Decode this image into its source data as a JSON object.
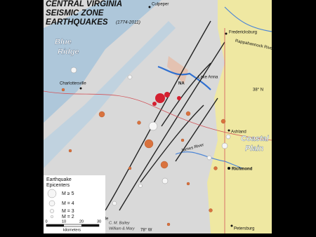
{
  "header": {
    "title_lines": [
      "CENTRAL VIRGINIA",
      "SEISMIC ZONE",
      "EARTHQUAKES"
    ],
    "dates": "(1774-2011)"
  },
  "places": {
    "culpeper": "Culpeper",
    "fredericksburg": "Fredericksburg",
    "rappahannock": "Rappahannock River",
    "charlottesville": "Charlottesville",
    "lake_anna": "Lake Anna",
    "na": "NA",
    "ashland": "Ashland",
    "james_river": "James River",
    "richmond": "Richmond",
    "petersburg": "Petersburg",
    "farmville": "Farmville"
  },
  "regions": {
    "blue_ridge": [
      "Blue",
      "Ridge"
    ],
    "coastal_plain": [
      "Coastal",
      "Plain"
    ]
  },
  "graticule": {
    "lat": "38° N",
    "lon": "78° W"
  },
  "legend": {
    "title": [
      "Earthquake",
      "Epicenters"
    ],
    "items": [
      "M ≥ 5",
      "M = 4",
      "M = 3",
      "M = 2"
    ]
  },
  "scale": {
    "ticks": [
      0,
      10,
      20,
      30
    ],
    "unit": "kilometers"
  },
  "credit": [
    "C. M. Bailey",
    "William & Mary"
  ]
}
